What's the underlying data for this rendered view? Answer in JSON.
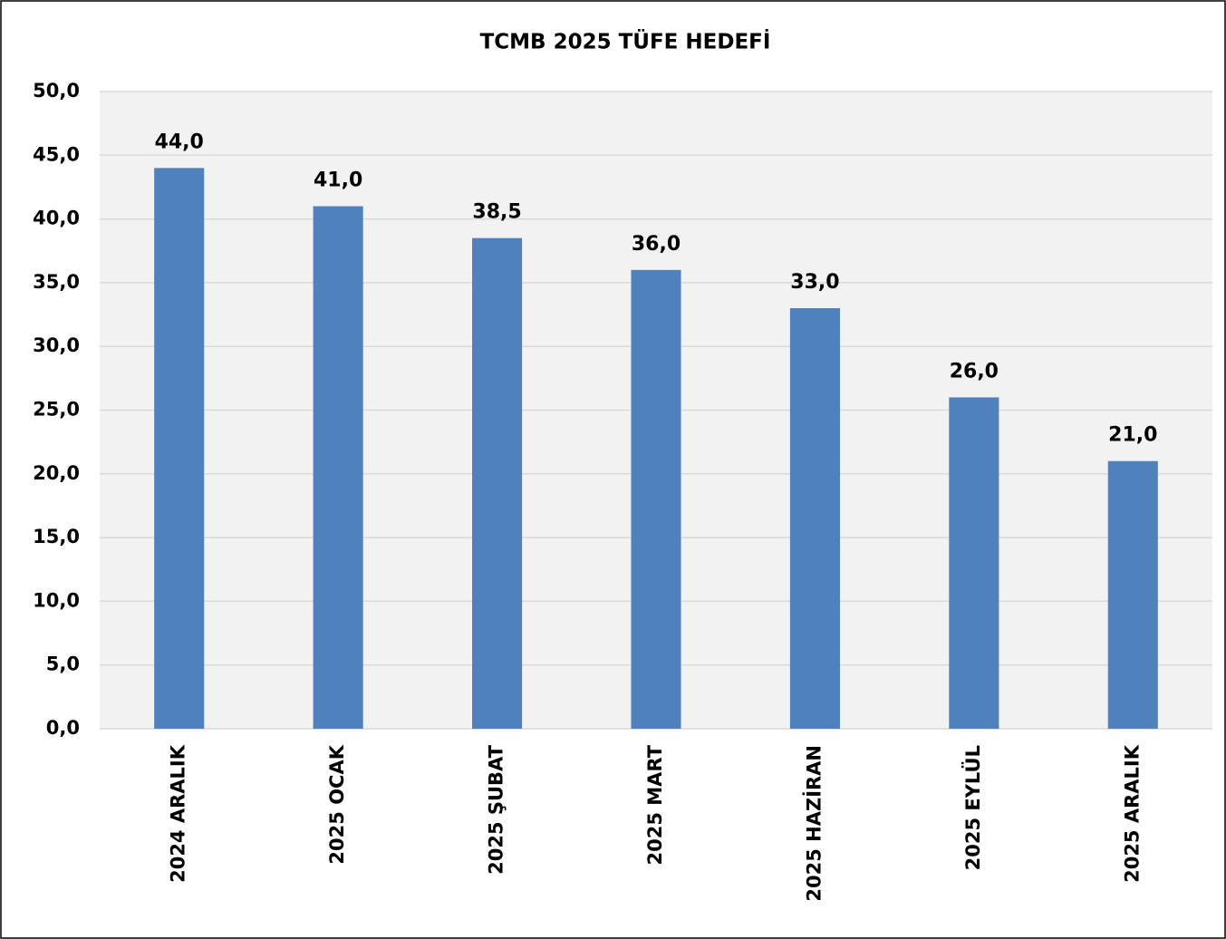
{
  "chart_data": {
    "type": "bar",
    "title": "TCMB 2025 TÜFE HEDEFİ",
    "categories": [
      "2024 ARALIK",
      "2025 OCAK",
      "2025 ŞUBAT",
      "2025 MART",
      "2025 HAZİRAN",
      "2025 EYLÜL",
      "2025 ARALIK"
    ],
    "values": [
      44,
      41,
      38.5,
      36,
      33,
      26,
      21
    ],
    "value_labels": [
      "44,0",
      "41,0",
      "38,5",
      "36,0",
      "33,0",
      "26,0",
      "21,0"
    ],
    "color": "#4f81bd",
    "ylim": [
      0,
      50
    ],
    "yticks": [
      {
        "value": 0,
        "label": "0,0"
      },
      {
        "value": 5,
        "label": "5,0"
      },
      {
        "value": 10,
        "label": "10,0"
      },
      {
        "value": 15,
        "label": "15,0"
      },
      {
        "value": 20,
        "label": "20,0"
      },
      {
        "value": 25,
        "label": "25,0"
      },
      {
        "value": 30,
        "label": "30,0"
      },
      {
        "value": 35,
        "label": "35,0"
      },
      {
        "value": 40,
        "label": "40,0"
      },
      {
        "value": 45,
        "label": "45,0"
      },
      {
        "value": 50,
        "label": "50,0"
      }
    ],
    "grid": true
  }
}
